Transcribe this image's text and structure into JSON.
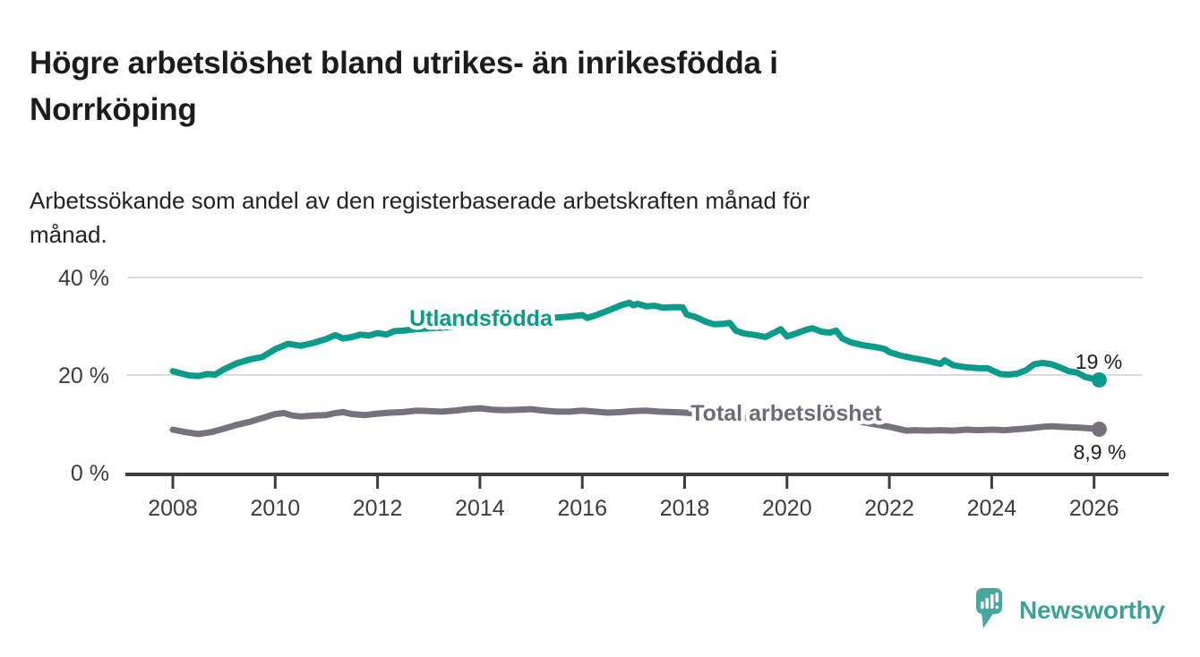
{
  "header": {
    "title": "Högre arbetslöshet bland utrikes- än inrikesfödda i Norrköping",
    "title_lines": [
      "Högre arbetslöshet bland utrikes- än inrikesfödda i",
      "Norrköping"
    ],
    "subtitle": "Arbetssökande som andel av den registerbaserade arbetskraften månad för månad.",
    "subtitle_lines": [
      "Arbetssökande som andel av den registerbaserade arbetskraften månad för",
      "månad."
    ]
  },
  "chart_data": {
    "type": "line",
    "title": "Högre arbetslöshet bland utrikes- än inrikesfödda i Norrköping",
    "subtitle": "Arbetssökande som andel av den registerbaserade arbetskraften månad för månad.",
    "grid": "horizontal-only",
    "legend": "inline-labels-on-lines",
    "x_axis": {
      "range": [
        2007.1,
        2027.6
      ],
      "ticks": [
        2008,
        2010,
        2012,
        2014,
        2016,
        2018,
        2020,
        2022,
        2024,
        2026
      ],
      "tick_labels": [
        "2008",
        "2010",
        "2012",
        "2014",
        "2016",
        "2018",
        "2020",
        "2022",
        "2024",
        "2026"
      ]
    },
    "y_axis": {
      "range": [
        0,
        40
      ],
      "unit": "%",
      "ticks": [
        0,
        20,
        40
      ],
      "tick_labels": [
        "0 %",
        "20 %",
        "40 %"
      ]
    },
    "series": [
      {
        "name": "Utlandsfödda",
        "color": "#0a9b8b",
        "end_label": "19 %",
        "end_value": 19,
        "points": [
          [
            2008.0,
            20.8
          ],
          [
            2008.17,
            20.3
          ],
          [
            2008.33,
            19.9
          ],
          [
            2008.5,
            19.8
          ],
          [
            2008.67,
            20.2
          ],
          [
            2008.83,
            20.1
          ],
          [
            2009.0,
            21.2
          ],
          [
            2009.25,
            22.4
          ],
          [
            2009.5,
            23.2
          ],
          [
            2009.75,
            23.7
          ],
          [
            2010.0,
            25.3
          ],
          [
            2010.25,
            26.4
          ],
          [
            2010.5,
            26.0
          ],
          [
            2010.75,
            26.6
          ],
          [
            2011.0,
            27.4
          ],
          [
            2011.17,
            28.2
          ],
          [
            2011.33,
            27.5
          ],
          [
            2011.5,
            27.8
          ],
          [
            2011.67,
            28.3
          ],
          [
            2011.83,
            28.1
          ],
          [
            2012.0,
            28.6
          ],
          [
            2012.17,
            28.3
          ],
          [
            2012.33,
            29.0
          ],
          [
            2012.5,
            29.1
          ],
          [
            2012.75,
            29.4
          ],
          [
            2013.0,
            29.6
          ],
          [
            2013.25,
            29.7
          ],
          [
            2013.5,
            29.9
          ],
          [
            2013.75,
            30.2
          ],
          [
            2014.0,
            30.4
          ],
          [
            2014.25,
            30.6
          ],
          [
            2014.5,
            30.9
          ],
          [
            2014.75,
            31.1
          ],
          [
            2015.0,
            31.3
          ],
          [
            2015.25,
            31.6
          ],
          [
            2015.5,
            31.8
          ],
          [
            2015.75,
            32.0
          ],
          [
            2016.0,
            32.3
          ],
          [
            2016.1,
            31.7
          ],
          [
            2016.25,
            32.2
          ],
          [
            2016.5,
            33.2
          ],
          [
            2016.75,
            34.3
          ],
          [
            2016.92,
            34.8
          ],
          [
            2017.0,
            34.3
          ],
          [
            2017.08,
            34.6
          ],
          [
            2017.25,
            34.1
          ],
          [
            2017.42,
            34.2
          ],
          [
            2017.58,
            33.8
          ],
          [
            2017.75,
            33.9
          ],
          [
            2017.96,
            33.9
          ],
          [
            2018.04,
            32.4
          ],
          [
            2018.21,
            31.9
          ],
          [
            2018.42,
            30.9
          ],
          [
            2018.58,
            30.4
          ],
          [
            2018.75,
            30.5
          ],
          [
            2018.88,
            30.7
          ],
          [
            2019.0,
            29.1
          ],
          [
            2019.17,
            28.5
          ],
          [
            2019.38,
            28.2
          ],
          [
            2019.58,
            27.8
          ],
          [
            2019.75,
            28.7
          ],
          [
            2019.88,
            29.4
          ],
          [
            2020.0,
            27.9
          ],
          [
            2020.17,
            28.5
          ],
          [
            2020.38,
            29.3
          ],
          [
            2020.5,
            29.6
          ],
          [
            2020.67,
            28.9
          ],
          [
            2020.83,
            28.7
          ],
          [
            2020.96,
            29.1
          ],
          [
            2021.08,
            27.5
          ],
          [
            2021.25,
            26.7
          ],
          [
            2021.5,
            26.1
          ],
          [
            2021.75,
            25.7
          ],
          [
            2021.92,
            25.3
          ],
          [
            2022.0,
            24.7
          ],
          [
            2022.25,
            23.9
          ],
          [
            2022.5,
            23.4
          ],
          [
            2022.75,
            22.9
          ],
          [
            2022.92,
            22.5
          ],
          [
            2023.0,
            22.3
          ],
          [
            2023.08,
            23.0
          ],
          [
            2023.25,
            22.0
          ],
          [
            2023.5,
            21.6
          ],
          [
            2023.75,
            21.4
          ],
          [
            2023.92,
            21.4
          ],
          [
            2024.0,
            21.0
          ],
          [
            2024.17,
            20.2
          ],
          [
            2024.33,
            20.1
          ],
          [
            2024.5,
            20.3
          ],
          [
            2024.67,
            21.0
          ],
          [
            2024.83,
            22.2
          ],
          [
            2025.0,
            22.5
          ],
          [
            2025.17,
            22.2
          ],
          [
            2025.33,
            21.6
          ],
          [
            2025.5,
            20.8
          ],
          [
            2025.67,
            20.5
          ],
          [
            2025.83,
            19.6
          ],
          [
            2026.0,
            19.2
          ],
          [
            2026.1,
            19.0
          ]
        ]
      },
      {
        "name": "Total arbetslöshet",
        "color": "#76717c",
        "end_label": "8,9 %",
        "end_value": 8.9,
        "points": [
          [
            2008.0,
            8.8
          ],
          [
            2008.25,
            8.3
          ],
          [
            2008.5,
            7.9
          ],
          [
            2008.75,
            8.3
          ],
          [
            2009.0,
            9.0
          ],
          [
            2009.25,
            9.8
          ],
          [
            2009.5,
            10.4
          ],
          [
            2009.75,
            11.2
          ],
          [
            2010.0,
            12.0
          ],
          [
            2010.17,
            12.2
          ],
          [
            2010.33,
            11.7
          ],
          [
            2010.5,
            11.5
          ],
          [
            2010.75,
            11.7
          ],
          [
            2011.0,
            11.8
          ],
          [
            2011.17,
            12.2
          ],
          [
            2011.33,
            12.4
          ],
          [
            2011.5,
            12.0
          ],
          [
            2011.75,
            11.8
          ],
          [
            2012.0,
            12.1
          ],
          [
            2012.25,
            12.3
          ],
          [
            2012.5,
            12.4
          ],
          [
            2012.75,
            12.7
          ],
          [
            2013.0,
            12.6
          ],
          [
            2013.25,
            12.5
          ],
          [
            2013.5,
            12.7
          ],
          [
            2013.75,
            13.0
          ],
          [
            2014.0,
            13.2
          ],
          [
            2014.25,
            12.9
          ],
          [
            2014.5,
            12.8
          ],
          [
            2014.75,
            12.9
          ],
          [
            2015.0,
            13.0
          ],
          [
            2015.25,
            12.7
          ],
          [
            2015.5,
            12.5
          ],
          [
            2015.75,
            12.5
          ],
          [
            2016.0,
            12.7
          ],
          [
            2016.25,
            12.5
          ],
          [
            2016.5,
            12.3
          ],
          [
            2016.75,
            12.4
          ],
          [
            2017.0,
            12.6
          ],
          [
            2017.25,
            12.7
          ],
          [
            2017.5,
            12.5
          ],
          [
            2017.75,
            12.4
          ],
          [
            2018.0,
            12.3
          ],
          [
            2018.5,
            11.9
          ],
          [
            2019.0,
            11.4
          ],
          [
            2019.5,
            11.0
          ],
          [
            2020.0,
            11.3
          ],
          [
            2020.5,
            11.7
          ],
          [
            2021.0,
            11.1
          ],
          [
            2021.5,
            10.3
          ],
          [
            2022.0,
            9.4
          ],
          [
            2022.33,
            8.6
          ],
          [
            2022.5,
            8.7
          ],
          [
            2022.75,
            8.6
          ],
          [
            2023.0,
            8.7
          ],
          [
            2023.25,
            8.6
          ],
          [
            2023.5,
            8.8
          ],
          [
            2023.75,
            8.7
          ],
          [
            2024.0,
            8.8
          ],
          [
            2024.25,
            8.7
          ],
          [
            2024.5,
            8.9
          ],
          [
            2024.75,
            9.1
          ],
          [
            2025.0,
            9.4
          ],
          [
            2025.17,
            9.5
          ],
          [
            2025.33,
            9.4
          ],
          [
            2025.5,
            9.3
          ],
          [
            2025.75,
            9.2
          ],
          [
            2026.0,
            9.0
          ],
          [
            2026.1,
            8.9
          ]
        ]
      }
    ]
  },
  "footer": {
    "brand": "Newsworthy",
    "logo_icon": "bar-chart-speech-bubble-icon",
    "brand_color": "#3ca197",
    "logo_fill": "#4aa79d"
  }
}
